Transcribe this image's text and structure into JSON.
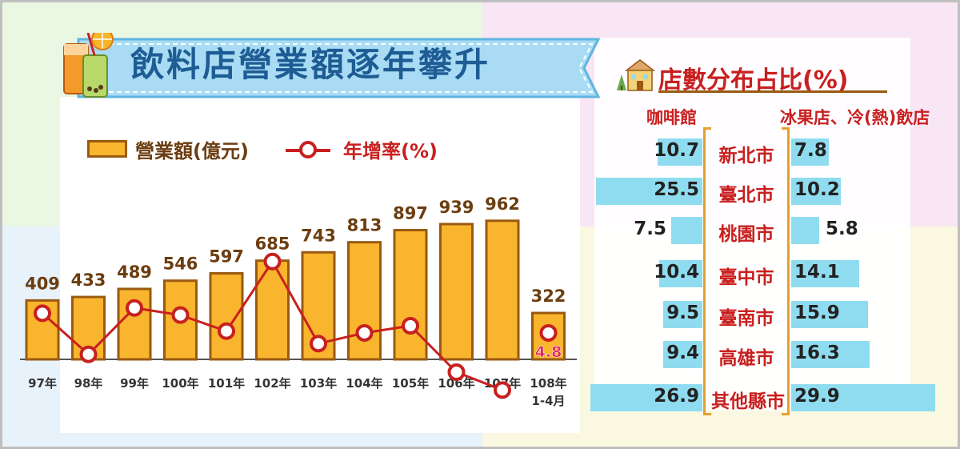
{
  "title": "飲料店營業額逐年攀升",
  "legend": {
    "bar": "營業額(億元)",
    "line": "年增率(%)"
  },
  "colors": {
    "bar": "#f9b52d",
    "bar_border": "#9a5a12",
    "line": "#c8201f",
    "city_bar": "#8fdcf0",
    "title": "#1e5c94"
  },
  "chart_data": [
    {
      "type": "bar",
      "categories": [
        "97年",
        "98年",
        "99年",
        "100年",
        "101年",
        "102年",
        "103年",
        "104年",
        "105年",
        "106年",
        "107年",
        "108年 1-4月"
      ],
      "series": [
        {
          "name": "營業額(億元)",
          "values": [
            409,
            433,
            489,
            546,
            597,
            685,
            743,
            813,
            897,
            939,
            962,
            322
          ]
        },
        {
          "name": "年增率(%)",
          "values": [
            5.9,
            3.6,
            6.2,
            5.8,
            4.9,
            8.8,
            4.2,
            4.8,
            5.2,
            2.6,
            1.6,
            4.8
          ]
        }
      ],
      "data_labels": [
        "409",
        "433",
        "489",
        "546",
        "597",
        "685",
        "743",
        "813",
        "897",
        "939",
        "962",
        "322"
      ],
      "line_label_last": "4.8"
    },
    {
      "type": "bar",
      "title": "店數分布占比(%)",
      "left_header": "咖啡館",
      "right_header": "冰果店、冷(熱)飲店",
      "categories": [
        "新北市",
        "臺北市",
        "桃園市",
        "臺中市",
        "臺南市",
        "高雄市",
        "其他縣市"
      ],
      "series": [
        {
          "name": "咖啡館",
          "values": [
            10.7,
            25.5,
            7.5,
            10.4,
            9.5,
            9.4,
            26.9
          ]
        },
        {
          "name": "冰果店、冷(熱)飲店",
          "values": [
            7.8,
            10.2,
            5.8,
            14.1,
            15.9,
            16.3,
            29.9
          ]
        }
      ],
      "left_labels": [
        "10.7",
        "25.5",
        "7.5",
        "10.4",
        "9.5",
        "9.4",
        "26.9"
      ],
      "right_labels": [
        "7.8",
        "10.2",
        "5.8",
        "14.1",
        "15.9",
        "16.3",
        "29.9"
      ]
    }
  ]
}
